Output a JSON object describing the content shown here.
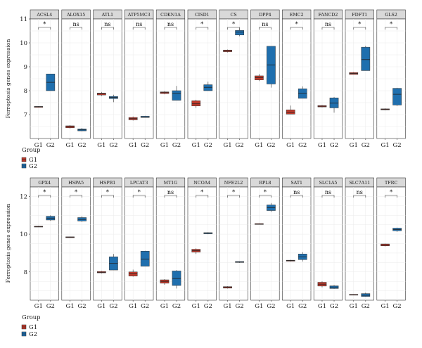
{
  "chart_data": [
    {
      "type": "box",
      "ylabel": "Ferroptosis genes expression",
      "ylim": [
        6.0,
        11.0
      ],
      "yticks": [
        7,
        8,
        9,
        10,
        11
      ],
      "groups": [
        "G1",
        "G2"
      ],
      "legend": {
        "title": "Group",
        "placement": "bottom-left",
        "entries": [
          "G1",
          "G2"
        ]
      },
      "colors": {
        "G1": "#c0392b",
        "G2": "#1f6fae"
      },
      "panels": [
        {
          "gene": "ACSL4",
          "sig": "*",
          "G1": {
            "min": 7.3,
            "q1": 7.32,
            "median": 7.33,
            "q3": 7.34,
            "max": 7.35
          },
          "G2": {
            "min": 8.0,
            "q1": 8.0,
            "median": 8.35,
            "q3": 8.7,
            "max": 8.7
          }
        },
        {
          "gene": "ALOX15",
          "sig": "ns",
          "G1": {
            "min": 6.42,
            "q1": 6.45,
            "median": 6.5,
            "q3": 6.53,
            "max": 6.56
          },
          "G2": {
            "min": 6.3,
            "q1": 6.32,
            "median": 6.36,
            "q3": 6.4,
            "max": 6.44
          }
        },
        {
          "gene": "ATL1",
          "sig": "ns",
          "G1": {
            "min": 7.78,
            "q1": 7.82,
            "median": 7.87,
            "q3": 7.9,
            "max": 7.95
          },
          "G2": {
            "min": 7.52,
            "q1": 7.67,
            "median": 7.72,
            "q3": 7.76,
            "max": 7.83
          }
        },
        {
          "gene": "ATP5MC3",
          "sig": "ns",
          "G1": {
            "min": 6.75,
            "q1": 6.78,
            "median": 6.83,
            "q3": 6.88,
            "max": 6.92
          },
          "G2": {
            "min": 6.88,
            "q1": 6.88,
            "median": 6.9,
            "q3": 6.93,
            "max": 6.95
          }
        },
        {
          "gene": "CDKN1A",
          "sig": "ns",
          "G1": {
            "min": 7.85,
            "q1": 7.88,
            "median": 7.92,
            "q3": 7.95,
            "max": 7.98
          },
          "G2": {
            "min": 7.6,
            "q1": 7.6,
            "median": 7.9,
            "q3": 8.0,
            "max": 8.2
          }
        },
        {
          "gene": "CISD1",
          "sig": "*",
          "G1": {
            "min": 7.28,
            "q1": 7.36,
            "median": 7.45,
            "q3": 7.58,
            "max": 7.62
          },
          "G2": {
            "min": 8.0,
            "q1": 8.0,
            "median": 8.14,
            "q3": 8.25,
            "max": 8.38
          }
        },
        {
          "gene": "CS",
          "sig": "*",
          "G1": {
            "min": 9.6,
            "q1": 9.63,
            "median": 9.67,
            "q3": 9.7,
            "max": 9.72
          },
          "G2": {
            "min": 10.28,
            "q1": 10.33,
            "median": 10.45,
            "q3": 10.52,
            "max": 10.6
          }
        },
        {
          "gene": "DPP4",
          "sig": "ns",
          "G1": {
            "min": 8.4,
            "q1": 8.45,
            "median": 8.55,
            "q3": 8.62,
            "max": 8.7
          },
          "G2": {
            "min": 8.13,
            "q1": 8.28,
            "median": 9.08,
            "q3": 9.86,
            "max": 9.86
          }
        },
        {
          "gene": "EMC2",
          "sig": "*",
          "G1": {
            "min": 7.02,
            "q1": 7.02,
            "median": 7.1,
            "q3": 7.2,
            "max": 7.38
          },
          "G2": {
            "min": 7.68,
            "q1": 7.68,
            "median": 7.9,
            "q3": 8.08,
            "max": 8.18
          }
        },
        {
          "gene": "FANCD2",
          "sig": "ns",
          "G1": {
            "min": 7.3,
            "q1": 7.32,
            "median": 7.35,
            "q3": 7.38,
            "max": 7.4
          },
          "G2": {
            "min": 7.08,
            "q1": 7.28,
            "median": 7.48,
            "q3": 7.7,
            "max": 7.74
          }
        },
        {
          "gene": "FDFT1",
          "sig": "*",
          "G1": {
            "min": 8.68,
            "q1": 8.68,
            "median": 8.72,
            "q3": 8.76,
            "max": 8.78
          },
          "G2": {
            "min": 8.84,
            "q1": 8.84,
            "median": 9.3,
            "q3": 9.82,
            "max": 9.88
          }
        },
        {
          "gene": "GLS2",
          "sig": "*",
          "G1": {
            "min": 7.18,
            "q1": 7.2,
            "median": 7.22,
            "q3": 7.24,
            "max": 7.26
          },
          "G2": {
            "min": 7.36,
            "q1": 7.4,
            "median": 7.85,
            "q3": 8.1,
            "max": 8.12
          }
        },
        {
          "gene": "GPX4",
          "sig": "*",
          "G1": {
            "min": 10.38,
            "q1": 10.39,
            "median": 10.4,
            "q3": 10.42,
            "max": 10.44
          },
          "G2": {
            "min": 10.7,
            "q1": 10.75,
            "median": 10.85,
            "q3": 10.95,
            "max": 11.0
          }
        },
        {
          "gene": "HSPA5",
          "sig": "*",
          "G1": {
            "min": 9.82,
            "q1": 9.83,
            "median": 9.84,
            "q3": 9.86,
            "max": 9.87
          },
          "G2": {
            "min": 10.65,
            "q1": 10.7,
            "median": 10.78,
            "q3": 10.88,
            "max": 10.95
          }
        },
        {
          "gene": "HSPB1",
          "sig": "*",
          "G1": {
            "min": 7.92,
            "q1": 7.95,
            "median": 7.98,
            "q3": 8.02,
            "max": 8.05
          },
          "G2": {
            "min": 8.1,
            "q1": 8.1,
            "median": 8.45,
            "q3": 8.8,
            "max": 8.95
          }
        },
        {
          "gene": "LPCAT3",
          "sig": "*",
          "G1": {
            "min": 7.75,
            "q1": 7.78,
            "median": 7.9,
            "q3": 8.0,
            "max": 8.12
          },
          "G2": {
            "min": 8.3,
            "q1": 8.3,
            "median": 8.68,
            "q3": 9.1,
            "max": 9.12
          }
        },
        {
          "gene": "MT1G",
          "sig": "ns",
          "G1": {
            "min": 7.32,
            "q1": 7.4,
            "median": 7.5,
            "q3": 7.58,
            "max": 7.62
          },
          "G2": {
            "min": 7.12,
            "q1": 7.28,
            "median": 7.65,
            "q3": 8.05,
            "max": 8.1
          }
        },
        {
          "gene": "NCOA4",
          "sig": "*",
          "G1": {
            "min": 8.95,
            "q1": 9.05,
            "median": 9.12,
            "q3": 9.2,
            "max": 9.25
          },
          "G2": {
            "min": 10.0,
            "q1": 10.02,
            "median": 10.05,
            "q3": 10.08,
            "max": 10.1
          }
        },
        {
          "gene": "NFE2L2",
          "sig": "*",
          "G1": {
            "min": 7.12,
            "q1": 7.14,
            "median": 7.18,
            "q3": 7.22,
            "max": 7.24
          },
          "G2": {
            "min": 8.48,
            "q1": 8.5,
            "median": 8.52,
            "q3": 8.55,
            "max": 8.56
          }
        },
        {
          "gene": "RPL8",
          "sig": "*",
          "G1": {
            "min": 10.52,
            "q1": 10.53,
            "median": 10.55,
            "q3": 10.56,
            "max": 10.57
          },
          "G2": {
            "min": 11.18,
            "q1": 11.25,
            "median": 11.4,
            "q3": 11.55,
            "max": 11.65
          }
        },
        {
          "gene": "SAT1",
          "sig": "ns",
          "G1": {
            "min": 8.55,
            "q1": 8.57,
            "median": 8.6,
            "q3": 8.62,
            "max": 8.64
          },
          "G2": {
            "min": 8.55,
            "q1": 8.65,
            "median": 8.8,
            "q3": 8.95,
            "max": 9.05
          }
        },
        {
          "gene": "SLC1A5",
          "sig": "ns",
          "G1": {
            "min": 7.18,
            "q1": 7.25,
            "median": 7.35,
            "q3": 7.45,
            "max": 7.5
          },
          "G2": {
            "min": 7.1,
            "q1": 7.12,
            "median": 7.2,
            "q3": 7.26,
            "max": 7.3
          }
        },
        {
          "gene": "SLC7A11",
          "sig": "ns",
          "G1": {
            "min": 6.78,
            "q1": 6.79,
            "median": 6.8,
            "q3": 6.81,
            "max": 6.82
          },
          "G2": {
            "min": 6.68,
            "q1": 6.7,
            "median": 6.76,
            "q3": 6.85,
            "max": 6.9
          }
        },
        {
          "gene": "TFRC",
          "sig": "*",
          "G1": {
            "min": 9.35,
            "q1": 9.38,
            "median": 9.43,
            "q3": 9.48,
            "max": 9.5
          },
          "G2": {
            "min": 10.12,
            "q1": 10.18,
            "median": 10.25,
            "q3": 10.32,
            "max": 10.35
          }
        }
      ]
    }
  ],
  "row2": {
    "ylim": [
      6.5,
      12.5
    ],
    "yticks": [
      8,
      10,
      12
    ]
  }
}
